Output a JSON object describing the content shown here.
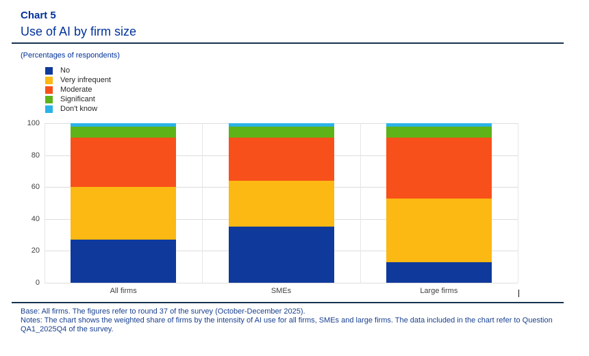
{
  "header": {
    "kicker": "Chart 5",
    "title": "Use of AI by firm size",
    "units_label": "(Percentages of respondents)"
  },
  "chart_data": {
    "type": "bar",
    "stacked": true,
    "orientation": "vertical",
    "categories": [
      "All firms",
      "SMEs",
      "Large firms"
    ],
    "series": [
      {
        "name": "No",
        "color": "#0f3a9c",
        "values": [
          27,
          35,
          13
        ]
      },
      {
        "name": "Very infrequent",
        "color": "#fcb813",
        "values": [
          33,
          29,
          40
        ]
      },
      {
        "name": "Moderate",
        "color": "#f8501a",
        "values": [
          31,
          27,
          38
        ]
      },
      {
        "name": "Significant",
        "color": "#5eb318",
        "values": [
          7,
          7,
          7
        ]
      },
      {
        "name": "Don't know",
        "color": "#2bb3e8",
        "values": [
          2,
          2,
          2
        ]
      }
    ],
    "ylim": [
      0,
      100
    ],
    "yticks": [
      0,
      20,
      40,
      60,
      80,
      100
    ],
    "grid": true,
    "legend_position": "top-left"
  },
  "footer": {
    "lines": [
      "Base: All firms. The figures refer to round 37 of the survey (October-December 2025).",
      "Notes: The chart shows the weighted share of firms by the intensity of AI use for all firms, SMEs and large firms. The data included in the chart refer to Question",
      "QA1_2025Q4 of the survey."
    ]
  },
  "colors": {
    "title": "#003299",
    "rule": "#16314e",
    "axis_text": "#3f3f3f",
    "gridline": "#dcdcdc",
    "footer_text": "#173f8f"
  }
}
